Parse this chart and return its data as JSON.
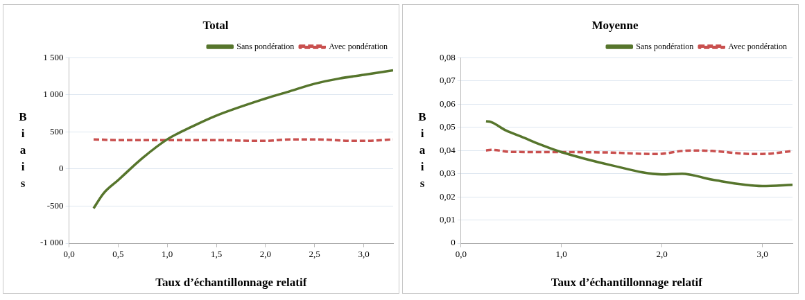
{
  "chart_data": [
    {
      "type": "line",
      "title": "Total",
      "xlabel": "Taux d’échantillonnage relatif",
      "ylabel": "Biais",
      "xlim": [
        0,
        3.3
      ],
      "xticks": [
        {
          "value": 0,
          "label": "0,0"
        },
        {
          "value": 0.5,
          "label": "0,5"
        },
        {
          "value": 1,
          "label": "1,0"
        },
        {
          "value": 1.5,
          "label": "1,5"
        },
        {
          "value": 2,
          "label": "2,0"
        },
        {
          "value": 2.5,
          "label": "2,5"
        },
        {
          "value": 3,
          "label": "3,0"
        }
      ],
      "ylim": [
        -1000,
        1500
      ],
      "yticks": [
        {
          "value": -1000,
          "label": "-1 000"
        },
        {
          "value": -500,
          "label": "-500"
        },
        {
          "value": 0,
          "label": "0"
        },
        500,
        {
          "value": 1000,
          "label": "1 000"
        },
        {
          "value": 1500,
          "label": "1 500"
        }
      ],
      "grid": "y",
      "legend": "top right",
      "marker": "none",
      "series": [
        {
          "name": "Sans pondération",
          "color": "#56752c",
          "line_style": "solid",
          "x": [
            0.25,
            0.35,
            0.5,
            0.75,
            1.0,
            1.25,
            1.5,
            2.0,
            2.25,
            2.5,
            2.75,
            3.0,
            3.3
          ],
          "values": [
            -530,
            -330,
            -150,
            150,
            400,
            570,
            720,
            950,
            1050,
            1150,
            1220,
            1270,
            1330
          ]
        },
        {
          "name": "Avec pondération",
          "color": "#c9504f",
          "line_style": "dashed",
          "x": [
            0.25,
            0.5,
            1.0,
            1.5,
            1.9,
            2.0,
            2.25,
            2.5,
            2.9,
            3.0,
            3.3
          ],
          "values": [
            400,
            390,
            390,
            390,
            380,
            380,
            400,
            400,
            380,
            380,
            400
          ]
        }
      ]
    },
    {
      "type": "line",
      "title": "Moyenne",
      "xlabel": "Taux d’échantillonnage relatif",
      "ylabel": "Biais",
      "xlim": [
        0,
        3.3
      ],
      "xticks": [
        {
          "value": 0,
          "label": "0,0"
        },
        {
          "value": 1,
          "label": "1,0"
        },
        {
          "value": 2,
          "label": "2,0"
        },
        {
          "value": 3,
          "label": "3,0"
        }
      ],
      "ylim": [
        0,
        0.08
      ],
      "yticks": [
        {
          "value": 0,
          "label": "0"
        },
        {
          "value": 0.01,
          "label": "0,01"
        },
        {
          "value": 0.02,
          "label": "0,02"
        },
        {
          "value": 0.03,
          "label": "0,03"
        },
        {
          "value": 0.04,
          "label": "0,04"
        },
        {
          "value": 0.05,
          "label": "0,05"
        },
        {
          "value": 0.06,
          "label": "0,06"
        },
        {
          "value": 0.07,
          "label": "0,07"
        },
        {
          "value": 0.08,
          "label": "0,08"
        }
      ],
      "grid": "y",
      "legend": "top right",
      "marker": "none",
      "series": [
        {
          "name": "Sans pondération",
          "color": "#56752c",
          "line_style": "solid",
          "x": [
            0.25,
            0.3,
            0.45,
            0.6,
            0.8,
            1.0,
            1.5,
            2.0,
            2.2,
            2.5,
            3.0,
            3.3
          ],
          "values": [
            0.0526,
            0.0523,
            0.0486,
            0.046,
            0.0424,
            0.0393,
            0.0336,
            0.0297,
            0.03,
            0.0274,
            0.0247,
            0.0252
          ]
        },
        {
          "name": "Avec pondération",
          "color": "#c9504f",
          "line_style": "dashed",
          "x": [
            0.25,
            0.3,
            0.5,
            1.0,
            1.5,
            1.9,
            2.0,
            2.2,
            2.3,
            2.5,
            2.9,
            3.0,
            3.3
          ],
          "values": [
            0.04,
            0.0403,
            0.0394,
            0.0393,
            0.0391,
            0.0385,
            0.0386,
            0.0398,
            0.04,
            0.0398,
            0.0385,
            0.0385,
            0.0398
          ]
        }
      ]
    }
  ]
}
